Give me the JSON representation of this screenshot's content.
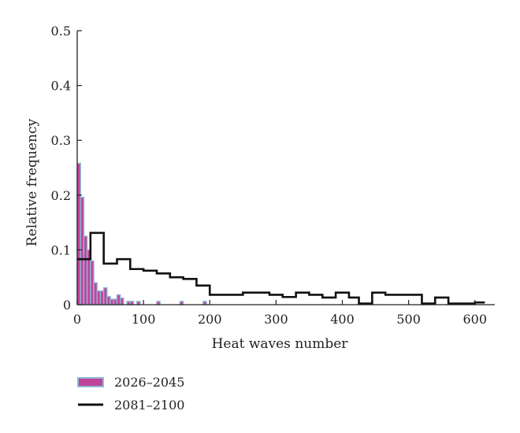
{
  "chart_data": {
    "type": "bar",
    "xlabel": "Heat waves number",
    "ylabel": "Relative frequency",
    "xlim": [
      0,
      630
    ],
    "ylim": [
      0,
      0.5
    ],
    "x_ticks": [
      0,
      100,
      200,
      300,
      400,
      500,
      600
    ],
    "y_ticks": [
      0,
      0.1,
      0.2,
      0.3,
      0.4,
      0.5
    ],
    "x_tick_labels": [
      "0",
      "100",
      "200",
      "300",
      "400",
      "500",
      "600"
    ],
    "y_tick_labels": [
      "0",
      "0.1",
      "0.2",
      "0.3",
      "0.4",
      "0.5"
    ],
    "legend_position": "bottom-left",
    "series": [
      {
        "name": "2026–2045",
        "type": "histogram",
        "color": "#c0449a",
        "edge_color": "#8fb8d6",
        "bin_width": 5,
        "bins": [
          {
            "x": 0,
            "y": 0.258
          },
          {
            "x": 5,
            "y": 0.196
          },
          {
            "x": 10,
            "y": 0.125
          },
          {
            "x": 15,
            "y": 0.1
          },
          {
            "x": 20,
            "y": 0.08
          },
          {
            "x": 25,
            "y": 0.04
          },
          {
            "x": 30,
            "y": 0.025
          },
          {
            "x": 35,
            "y": 0.025
          },
          {
            "x": 40,
            "y": 0.031
          },
          {
            "x": 45,
            "y": 0.015
          },
          {
            "x": 50,
            "y": 0.01
          },
          {
            "x": 55,
            "y": 0.01
          },
          {
            "x": 60,
            "y": 0.018
          },
          {
            "x": 65,
            "y": 0.012
          },
          {
            "x": 75,
            "y": 0.006
          },
          {
            "x": 80,
            "y": 0.006
          },
          {
            "x": 90,
            "y": 0.006
          },
          {
            "x": 120,
            "y": 0.006
          },
          {
            "x": 155,
            "y": 0.006
          },
          {
            "x": 190,
            "y": 0.006
          }
        ]
      },
      {
        "name": "2081–2100",
        "type": "step",
        "color": "#111111",
        "steps": [
          {
            "x0": 0,
            "x1": 20,
            "y": 0.083
          },
          {
            "x0": 20,
            "x1": 40,
            "y": 0.131
          },
          {
            "x0": 40,
            "x1": 60,
            "y": 0.075
          },
          {
            "x0": 60,
            "x1": 80,
            "y": 0.083
          },
          {
            "x0": 80,
            "x1": 100,
            "y": 0.065
          },
          {
            "x0": 100,
            "x1": 120,
            "y": 0.062
          },
          {
            "x0": 120,
            "x1": 140,
            "y": 0.057
          },
          {
            "x0": 140,
            "x1": 160,
            "y": 0.05
          },
          {
            "x0": 160,
            "x1": 180,
            "y": 0.047
          },
          {
            "x0": 180,
            "x1": 200,
            "y": 0.035
          },
          {
            "x0": 200,
            "x1": 250,
            "y": 0.018
          },
          {
            "x0": 250,
            "x1": 290,
            "y": 0.022
          },
          {
            "x0": 290,
            "x1": 310,
            "y": 0.018
          },
          {
            "x0": 310,
            "x1": 330,
            "y": 0.014
          },
          {
            "x0": 330,
            "x1": 350,
            "y": 0.022
          },
          {
            "x0": 350,
            "x1": 370,
            "y": 0.018
          },
          {
            "x0": 370,
            "x1": 390,
            "y": 0.013
          },
          {
            "x0": 390,
            "x1": 410,
            "y": 0.022
          },
          {
            "x0": 410,
            "x1": 425,
            "y": 0.013
          },
          {
            "x0": 425,
            "x1": 445,
            "y": 0.002
          },
          {
            "x0": 445,
            "x1": 465,
            "y": 0.022
          },
          {
            "x0": 465,
            "x1": 520,
            "y": 0.018
          },
          {
            "x0": 520,
            "x1": 540,
            "y": 0.002
          },
          {
            "x0": 540,
            "x1": 560,
            "y": 0.013
          },
          {
            "x0": 560,
            "x1": 600,
            "y": 0.002
          },
          {
            "x0": 600,
            "x1": 615,
            "y": 0.004
          }
        ]
      }
    ]
  }
}
